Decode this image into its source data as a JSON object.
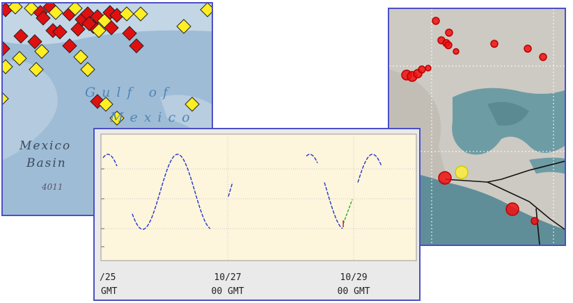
{
  "map_left": {
    "gulf_line_1": "Gulf of",
    "gulf_line_2": "Mexico",
    "basin_line_1": "Mexico",
    "basin_line_2": "Basin",
    "depth": "4011"
  },
  "chart": {
    "x_labels": [
      {
        "date": "/25",
        "time": "GMT"
      },
      {
        "date": "10/27",
        "time": "00 GMT"
      },
      {
        "date": "10/29",
        "time": "00 GMT"
      }
    ]
  }
}
